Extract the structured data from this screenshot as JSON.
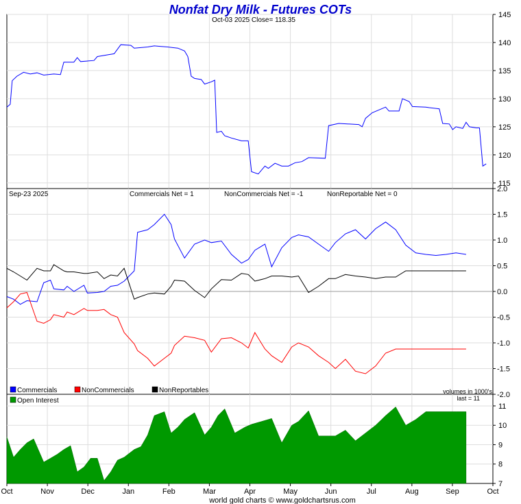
{
  "chart_data": [
    {
      "type": "line",
      "panel": "price",
      "title": "Nonfat Dry Milk - Futures COTs",
      "subtitle": "Oct-03  2025   Close= 118.35",
      "ylim": [
        114,
        145
      ],
      "yticks": [
        115,
        120,
        125,
        130,
        135,
        140,
        145
      ],
      "series": [
        {
          "name": "Close",
          "color": "#0000ff",
          "points": [
            [
              0.0,
              128.5
            ],
            [
              0.5,
              129.0
            ],
            [
              0.8,
              133.2
            ],
            [
              1.5,
              134.0
            ],
            [
              2.5,
              134.7
            ],
            [
              3.5,
              134.4
            ],
            [
              4.5,
              134.6
            ],
            [
              5.5,
              134.2
            ],
            [
              7.0,
              134.4
            ],
            [
              8.0,
              134.3
            ],
            [
              8.5,
              136.5
            ],
            [
              10.0,
              136.5
            ],
            [
              10.5,
              137.3
            ],
            [
              11.0,
              136.6
            ],
            [
              13.0,
              136.8
            ],
            [
              13.5,
              137.5
            ],
            [
              15.0,
              137.8
            ],
            [
              16.0,
              138.0
            ],
            [
              17.0,
              139.6
            ],
            [
              18.5,
              139.5
            ],
            [
              19.0,
              139.0
            ],
            [
              21.0,
              139.2
            ],
            [
              22.0,
              139.4
            ],
            [
              23.0,
              139.3
            ],
            [
              24.0,
              139.2
            ],
            [
              25.5,
              139.0
            ],
            [
              26.5,
              138.5
            ],
            [
              27.0,
              137.5
            ],
            [
              27.5,
              134.0
            ],
            [
              28.0,
              133.6
            ],
            [
              29.0,
              133.4
            ],
            [
              29.5,
              132.6
            ],
            [
              30.5,
              133.0
            ],
            [
              31.0,
              133.3
            ],
            [
              31.3,
              124.0
            ],
            [
              32.0,
              124.2
            ],
            [
              32.5,
              123.4
            ],
            [
              33.5,
              123.0
            ],
            [
              35.0,
              122.5
            ],
            [
              36.0,
              122.5
            ],
            [
              36.5,
              117.0
            ],
            [
              37.5,
              116.6
            ],
            [
              38.5,
              118.0
            ],
            [
              39.0,
              117.6
            ],
            [
              40.0,
              118.5
            ],
            [
              41.0,
              118.0
            ],
            [
              42.0,
              118.0
            ],
            [
              43.0,
              118.6
            ],
            [
              44.0,
              118.8
            ],
            [
              45.0,
              119.5
            ],
            [
              47.5,
              119.4
            ],
            [
              48.0,
              125.2
            ],
            [
              49.5,
              125.6
            ],
            [
              52.5,
              125.4
            ],
            [
              53.0,
              125.0
            ],
            [
              53.5,
              126.5
            ],
            [
              54.5,
              127.5
            ],
            [
              56.5,
              128.5
            ],
            [
              57.0,
              127.8
            ],
            [
              58.5,
              127.8
            ],
            [
              59.0,
              130.0
            ],
            [
              60.0,
              129.5
            ],
            [
              60.5,
              128.6
            ],
            [
              62.5,
              128.5
            ],
            [
              63.0,
              128.4
            ],
            [
              64.5,
              128.2
            ],
            [
              65.0,
              125.6
            ],
            [
              66.0,
              125.5
            ],
            [
              66.5,
              124.5
            ],
            [
              67.0,
              125.0
            ],
            [
              68.0,
              124.7
            ],
            [
              68.5,
              125.8
            ],
            [
              69.0,
              125.0
            ],
            [
              70.0,
              124.8
            ],
            [
              70.5,
              124.8
            ],
            [
              71.0,
              118.0
            ],
            [
              71.5,
              118.4
            ]
          ]
        }
      ]
    },
    {
      "type": "line",
      "panel": "cot",
      "date_label": "Sep-23  2025",
      "readouts": [
        "Commercials Net = 1",
        "NonCommercials Net = -1",
        "NonReportable Net = 0"
      ],
      "ylim": [
        -2.0,
        2.0
      ],
      "yticks": [
        2.0,
        1.5,
        1.0,
        0.5,
        0.0,
        -0.5,
        -1.0,
        -1.5,
        -2.0
      ],
      "ytick_labels": [
        "2.0",
        "1.5",
        "1.0",
        "0.5",
        "0.0",
        "-0.5",
        "-1.0",
        "-1.5",
        "-2.0"
      ],
      "x": [
        0.0,
        1.0,
        2.0,
        3.0,
        4.5,
        5.5,
        6.5,
        7.0,
        8.5,
        9.0,
        10.0,
        11.5,
        12.0,
        13.5,
        14.5,
        15.5,
        16.5,
        17.5,
        19.0,
        19.5,
        21.0,
        22.0,
        23.5,
        24.5,
        25.0,
        26.5,
        28.0,
        29.5,
        30.5,
        32.0,
        33.5,
        35.0,
        36.0,
        37.0,
        38.5,
        39.5,
        41.0,
        42.5,
        43.5,
        45.0,
        46.5,
        48.0,
        49.0,
        50.5,
        52.0,
        53.5,
        55.0,
        56.5,
        58.0,
        59.5,
        61.0,
        62.5,
        64.0,
        65.5,
        67.0,
        68.5
      ],
      "series": [
        {
          "name": "Commercials",
          "color": "#0000ff",
          "values": [
            -0.1,
            -0.15,
            -0.25,
            -0.18,
            -0.2,
            0.17,
            0.22,
            0.05,
            0.03,
            0.1,
            0.0,
            0.12,
            -0.03,
            -0.02,
            0.0,
            0.1,
            0.12,
            0.2,
            0.4,
            1.15,
            1.2,
            1.3,
            1.5,
            1.3,
            1.02,
            0.65,
            0.92,
            1.0,
            0.95,
            0.98,
            0.72,
            0.55,
            0.62,
            0.8,
            0.92,
            0.48,
            0.85,
            1.05,
            1.1,
            1.06,
            0.92,
            0.78,
            0.95,
            1.12,
            1.2,
            1.02,
            1.22,
            1.35,
            1.2,
            0.9,
            0.75,
            0.72,
            0.7,
            0.72,
            0.75,
            0.72
          ]
        },
        {
          "name": "NonCommercials",
          "color": "#ff0000",
          "values": [
            -0.32,
            -0.2,
            -0.05,
            -0.02,
            -0.58,
            -0.62,
            -0.55,
            -0.45,
            -0.5,
            -0.4,
            -0.45,
            -0.33,
            -0.37,
            -0.37,
            -0.35,
            -0.45,
            -0.5,
            -0.8,
            -1.02,
            -1.15,
            -1.3,
            -1.45,
            -1.3,
            -1.2,
            -1.05,
            -0.87,
            -0.9,
            -0.95,
            -1.18,
            -0.92,
            -0.9,
            -1.0,
            -1.1,
            -0.8,
            -1.12,
            -1.25,
            -1.38,
            -1.08,
            -1.0,
            -1.08,
            -1.25,
            -1.38,
            -1.5,
            -1.32,
            -1.55,
            -1.6,
            -1.45,
            -1.2,
            -1.12,
            -1.12,
            -1.12,
            -1.12,
            -1.12,
            -1.12,
            -1.12,
            -1.12
          ]
        },
        {
          "name": "NonReportables",
          "color": "#000000",
          "values": [
            0.45,
            0.38,
            0.3,
            0.22,
            0.45,
            0.4,
            0.4,
            0.52,
            0.4,
            0.38,
            0.38,
            0.35,
            0.35,
            0.38,
            0.25,
            0.32,
            0.3,
            0.45,
            -0.15,
            -0.12,
            -0.05,
            -0.03,
            -0.05,
            0.1,
            0.22,
            0.2,
            0.02,
            -0.12,
            0.05,
            0.23,
            0.22,
            0.35,
            0.33,
            0.2,
            0.25,
            0.3,
            0.3,
            0.28,
            0.3,
            -0.02,
            0.1,
            0.25,
            0.25,
            0.33,
            0.3,
            0.28,
            0.25,
            0.28,
            0.28,
            0.4,
            0.4,
            0.4,
            0.4,
            0.4,
            0.4,
            0.4
          ]
        }
      ],
      "legend": [
        "Commercials",
        "NonCommercials",
        "NonReportables"
      ],
      "legend_position": "bottom-left",
      "legend_colors": [
        "#0000ff",
        "#ff0000",
        "#000000"
      ]
    },
    {
      "type": "area",
      "panel": "open_interest",
      "title": "Open Interest",
      "note_volumes": "volumes in 1000's",
      "note_last": "last = 11",
      "ylim": [
        7,
        11.6
      ],
      "yticks": [
        7,
        8,
        9,
        10,
        11
      ],
      "color": "#009900",
      "x": [
        0.0,
        1.0,
        2.0,
        3.0,
        4.0,
        5.5,
        6.5,
        7.5,
        8.5,
        9.5,
        10.5,
        11.5,
        12.5,
        13.5,
        14.5,
        15.5,
        16.5,
        17.5,
        19.0,
        20.0,
        21.0,
        22.0,
        23.5,
        24.5,
        25.5,
        26.5,
        28.0,
        29.5,
        30.5,
        31.5,
        32.5,
        34.0,
        35.5,
        36.5,
        38.0,
        39.5,
        41.0,
        42.5,
        43.5,
        45.0,
        46.5,
        48.0,
        49.0,
        50.5,
        52.0,
        53.5,
        55.0,
        56.5,
        58.0,
        59.5,
        61.0,
        62.5,
        64.0,
        65.5,
        67.0,
        68.5
      ],
      "values": [
        9.4,
        8.35,
        8.75,
        9.1,
        9.3,
        8.1,
        8.3,
        8.5,
        8.75,
        8.95,
        7.6,
        7.85,
        8.3,
        8.3,
        7.15,
        7.6,
        8.2,
        8.35,
        8.75,
        8.9,
        9.5,
        10.5,
        10.7,
        9.6,
        9.9,
        10.3,
        10.65,
        9.5,
        9.9,
        10.5,
        10.85,
        9.6,
        9.9,
        10.05,
        10.2,
        10.35,
        9.1,
        10.0,
        10.2,
        10.75,
        9.45,
        9.45,
        9.45,
        9.75,
        9.2,
        9.6,
        10.0,
        10.5,
        10.95,
        10.0,
        10.3,
        10.7,
        10.7,
        10.7,
        10.7,
        10.7
      ]
    }
  ],
  "x_axis": {
    "labels": [
      "Oct",
      "Nov",
      "Dec",
      "Jan",
      "Feb",
      "Mar",
      "Apr",
      "May",
      "Jun",
      "Jul",
      "Aug",
      "Sep",
      "Oct"
    ]
  },
  "footer": "world gold charts © www.goldchartsrus.com",
  "colors": {
    "title": "#0000cc",
    "grid": "#dddddd",
    "frame": "#000000"
  }
}
